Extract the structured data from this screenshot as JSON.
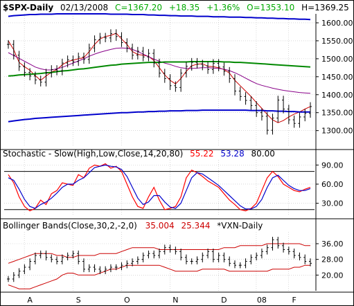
{
  "header": {
    "symbol": "$SPX-Daily",
    "date": "02/13/2008",
    "close": "C=1367.20",
    "change": "+18.35",
    "pct": "+1.36%",
    "open": "O=1353.10",
    "high": "H=1369.25"
  },
  "stoch_title": {
    "label": "Stochastic - Slow(High,Low,Close,14,20,80)",
    "k": "55.22",
    "d": "53.28",
    "upper": "80.00"
  },
  "bb_title": {
    "label": "Bollinger Bands(Close,30,2,-2,0)",
    "upper": "35.004",
    "lower": "25.344",
    "overlay": "*VXN-Daily"
  },
  "colors": {
    "up": "#00aa00",
    "down": "#ff0000",
    "k": "#ff0000",
    "d": "#0000cc",
    "ma_long_up": "#0000cc",
    "ma_mid": "#008800",
    "ma_fast": "#cc0000",
    "ma_slow": "#880088",
    "grid": "#bfbfbf"
  },
  "chart_data": [
    {
      "type": "line",
      "title": "$SPX-Daily",
      "ylim": [
        1255,
        1625
      ],
      "y_ticks": [
        1300,
        1350,
        1400,
        1450,
        1500,
        1550,
        1600
      ],
      "x_month_labels": [
        "A",
        "S",
        "O",
        "N",
        "D",
        "08",
        "F"
      ],
      "series": [
        {
          "values": [
            1550,
            1525,
            1490,
            1478,
            1468,
            1453,
            1440,
            1452,
            1463,
            1470,
            1483,
            1492,
            1496,
            1500,
            1503,
            1520,
            1540,
            1555,
            1562,
            1565,
            1571,
            1555,
            1540,
            1520,
            1512,
            1510,
            1507,
            1495,
            1475,
            1455,
            1440,
            1430,
            1445,
            1465,
            1480,
            1485,
            1486,
            1479,
            1478,
            1475,
            1470,
            1460,
            1440,
            1425,
            1410,
            1395,
            1378,
            1362,
            1345,
            1330,
            1322,
            1328,
            1338,
            1346,
            1352,
            1360,
            1367
          ]
        },
        {
          "values": [
            1517,
            1509,
            1501,
            1493,
            1485,
            1477,
            1472,
            1469,
            1469,
            1472,
            1476,
            1482,
            1488,
            1494,
            1500,
            1507,
            1513,
            1518,
            1522,
            1526,
            1529,
            1530,
            1529,
            1526,
            1520,
            1513,
            1506,
            1499,
            1493,
            1488,
            1484,
            1479,
            1475,
            1473,
            1473,
            1474,
            1475,
            1475,
            1474,
            1473,
            1471,
            1467,
            1461,
            1454,
            1446,
            1438,
            1431,
            1426,
            1422,
            1418,
            1415,
            1412,
            1410,
            1408,
            1406,
            1405,
            1404
          ]
        },
        {
          "values": [
            1452,
            1453,
            1455,
            1456,
            1457,
            1458,
            1459,
            1461,
            1462,
            1464,
            1466,
            1467,
            1469,
            1471,
            1472,
            1474,
            1476,
            1478,
            1480,
            1482,
            1483,
            1485,
            1486,
            1487,
            1488,
            1489,
            1490,
            1490,
            1490,
            1491,
            1491,
            1491,
            1491,
            1491,
            1492,
            1492,
            1492,
            1492,
            1492,
            1492,
            1491,
            1491,
            1490,
            1490,
            1489,
            1488,
            1487,
            1486,
            1485,
            1484,
            1483,
            1482,
            1481,
            1480,
            1479,
            1478,
            1477
          ]
        },
        {
          "values": [
            1618,
            1620,
            1621,
            1622,
            1623,
            1623,
            1624,
            1624,
            1624,
            1625,
            1625,
            1625,
            1625,
            1625,
            1625,
            1625,
            1625,
            1625,
            1625,
            1624,
            1624,
            1624,
            1624,
            1623,
            1623,
            1623,
            1622,
            1622,
            1621,
            1621,
            1620,
            1620,
            1619,
            1619,
            1619,
            1618,
            1618,
            1618,
            1617,
            1617,
            1617,
            1616,
            1616,
            1616,
            1615,
            1615,
            1614,
            1614,
            1613,
            1613,
            1612,
            1612,
            1611,
            1611,
            1610,
            1610,
            1609
          ]
        },
        {
          "values": [
            1325,
            1327,
            1329,
            1331,
            1332,
            1334,
            1335,
            1336,
            1337,
            1338,
            1339,
            1340,
            1341,
            1342,
            1343,
            1344,
            1345,
            1346,
            1347,
            1348,
            1349,
            1350,
            1350,
            1351,
            1352,
            1352,
            1353,
            1353,
            1354,
            1354,
            1355,
            1355,
            1355,
            1356,
            1356,
            1356,
            1357,
            1357,
            1357,
            1357,
            1357,
            1357,
            1357,
            1357,
            1357,
            1356,
            1356,
            1356,
            1355,
            1355,
            1354,
            1354,
            1353,
            1353,
            1352,
            1352,
            1352
          ]
        }
      ],
      "price_bars": [
        1540,
        1510,
        1478,
        1462,
        1452,
        1441,
        1435,
        1460,
        1470,
        1466,
        1488,
        1497,
        1492,
        1505,
        1498,
        1530,
        1553,
        1560,
        1558,
        1570,
        1562,
        1545,
        1530,
        1510,
        1521,
        1505,
        1515,
        1488,
        1460,
        1445,
        1425,
        1420,
        1460,
        1479,
        1490,
        1485,
        1480,
        1470,
        1487,
        1477,
        1465,
        1445,
        1410,
        1395,
        1384,
        1370,
        1350,
        1340,
        1301,
        1335,
        1385,
        1360,
        1330,
        1320,
        1338,
        1348,
        1367
      ]
    },
    {
      "type": "line",
      "title": "Stochastic - Slow(High,Low,Close,14,20,80)",
      "ylim": [
        10,
        98
      ],
      "y_ticks": [
        30.0,
        60.0,
        90.0
      ],
      "ref_lines": [
        20,
        80
      ],
      "series": [
        {
          "name": "55.22",
          "values": [
            75,
            62,
            40,
            25,
            18,
            22,
            35,
            28,
            45,
            50,
            62,
            60,
            58,
            75,
            70,
            85,
            90,
            88,
            92,
            85,
            88,
            80,
            60,
            40,
            25,
            22,
            40,
            55,
            35,
            20,
            22,
            25,
            40,
            70,
            82,
            78,
            72,
            65,
            60,
            55,
            45,
            35,
            28,
            20,
            18,
            22,
            30,
            50,
            70,
            80,
            72,
            60,
            55,
            50,
            48,
            52,
            55
          ]
        },
        {
          "name": "53.28",
          "values": [
            70,
            66,
            52,
            36,
            25,
            22,
            28,
            32,
            38,
            46,
            55,
            60,
            60,
            66,
            70,
            78,
            86,
            88,
            90,
            88,
            87,
            83,
            72,
            55,
            38,
            28,
            32,
            42,
            42,
            32,
            24,
            22,
            30,
            50,
            70,
            78,
            76,
            70,
            64,
            58,
            50,
            42,
            34,
            26,
            21,
            21,
            25,
            36,
            55,
            70,
            74,
            66,
            58,
            53,
            50,
            50,
            53
          ]
        }
      ]
    },
    {
      "type": "line",
      "title": "Bollinger Bands(Close,30,2,-2,0)",
      "ylim": [
        12,
        42
      ],
      "y_ticks": [
        20.0,
        28.0,
        36.0
      ],
      "series": [
        {
          "name": "35.004",
          "values": [
            26,
            27,
            28,
            29,
            30,
            31,
            31,
            31,
            31,
            30,
            30,
            29,
            29,
            30,
            30,
            30,
            30,
            31,
            31,
            31,
            31,
            32,
            33,
            34,
            34,
            34,
            34,
            34,
            33,
            33,
            33,
            33,
            33,
            33,
            33,
            33,
            33,
            33,
            33,
            33,
            34,
            34,
            34,
            35,
            35,
            35,
            35,
            35,
            36,
            36,
            36,
            36,
            36,
            36,
            36,
            35,
            35
          ]
        },
        {
          "name": "25.344",
          "values": [
            15,
            14,
            13,
            13,
            13,
            14,
            15,
            16,
            17,
            18,
            20,
            21,
            21,
            20,
            20,
            20,
            20,
            21,
            22,
            23,
            23,
            24,
            25,
            25,
            25,
            25,
            25,
            25,
            25,
            24,
            23,
            22,
            22,
            22,
            22,
            22,
            23,
            23,
            23,
            23,
            23,
            22,
            22,
            22,
            22,
            22,
            22,
            22,
            22,
            23,
            23,
            23,
            23,
            24,
            24,
            25,
            25
          ]
        }
      ],
      "price_bars": [
        18,
        20,
        22,
        24,
        27,
        30,
        31,
        29,
        28,
        27,
        29,
        30,
        31,
        27,
        23,
        24,
        23,
        22,
        23,
        24,
        24,
        25,
        26,
        27,
        28,
        30,
        31,
        30,
        32,
        34,
        33,
        32,
        29,
        27,
        27,
        28,
        30,
        32,
        28,
        30,
        28,
        26,
        25,
        25,
        27,
        29,
        30,
        32,
        34,
        38,
        35,
        33,
        32,
        30,
        29,
        27,
        26
      ]
    }
  ]
}
